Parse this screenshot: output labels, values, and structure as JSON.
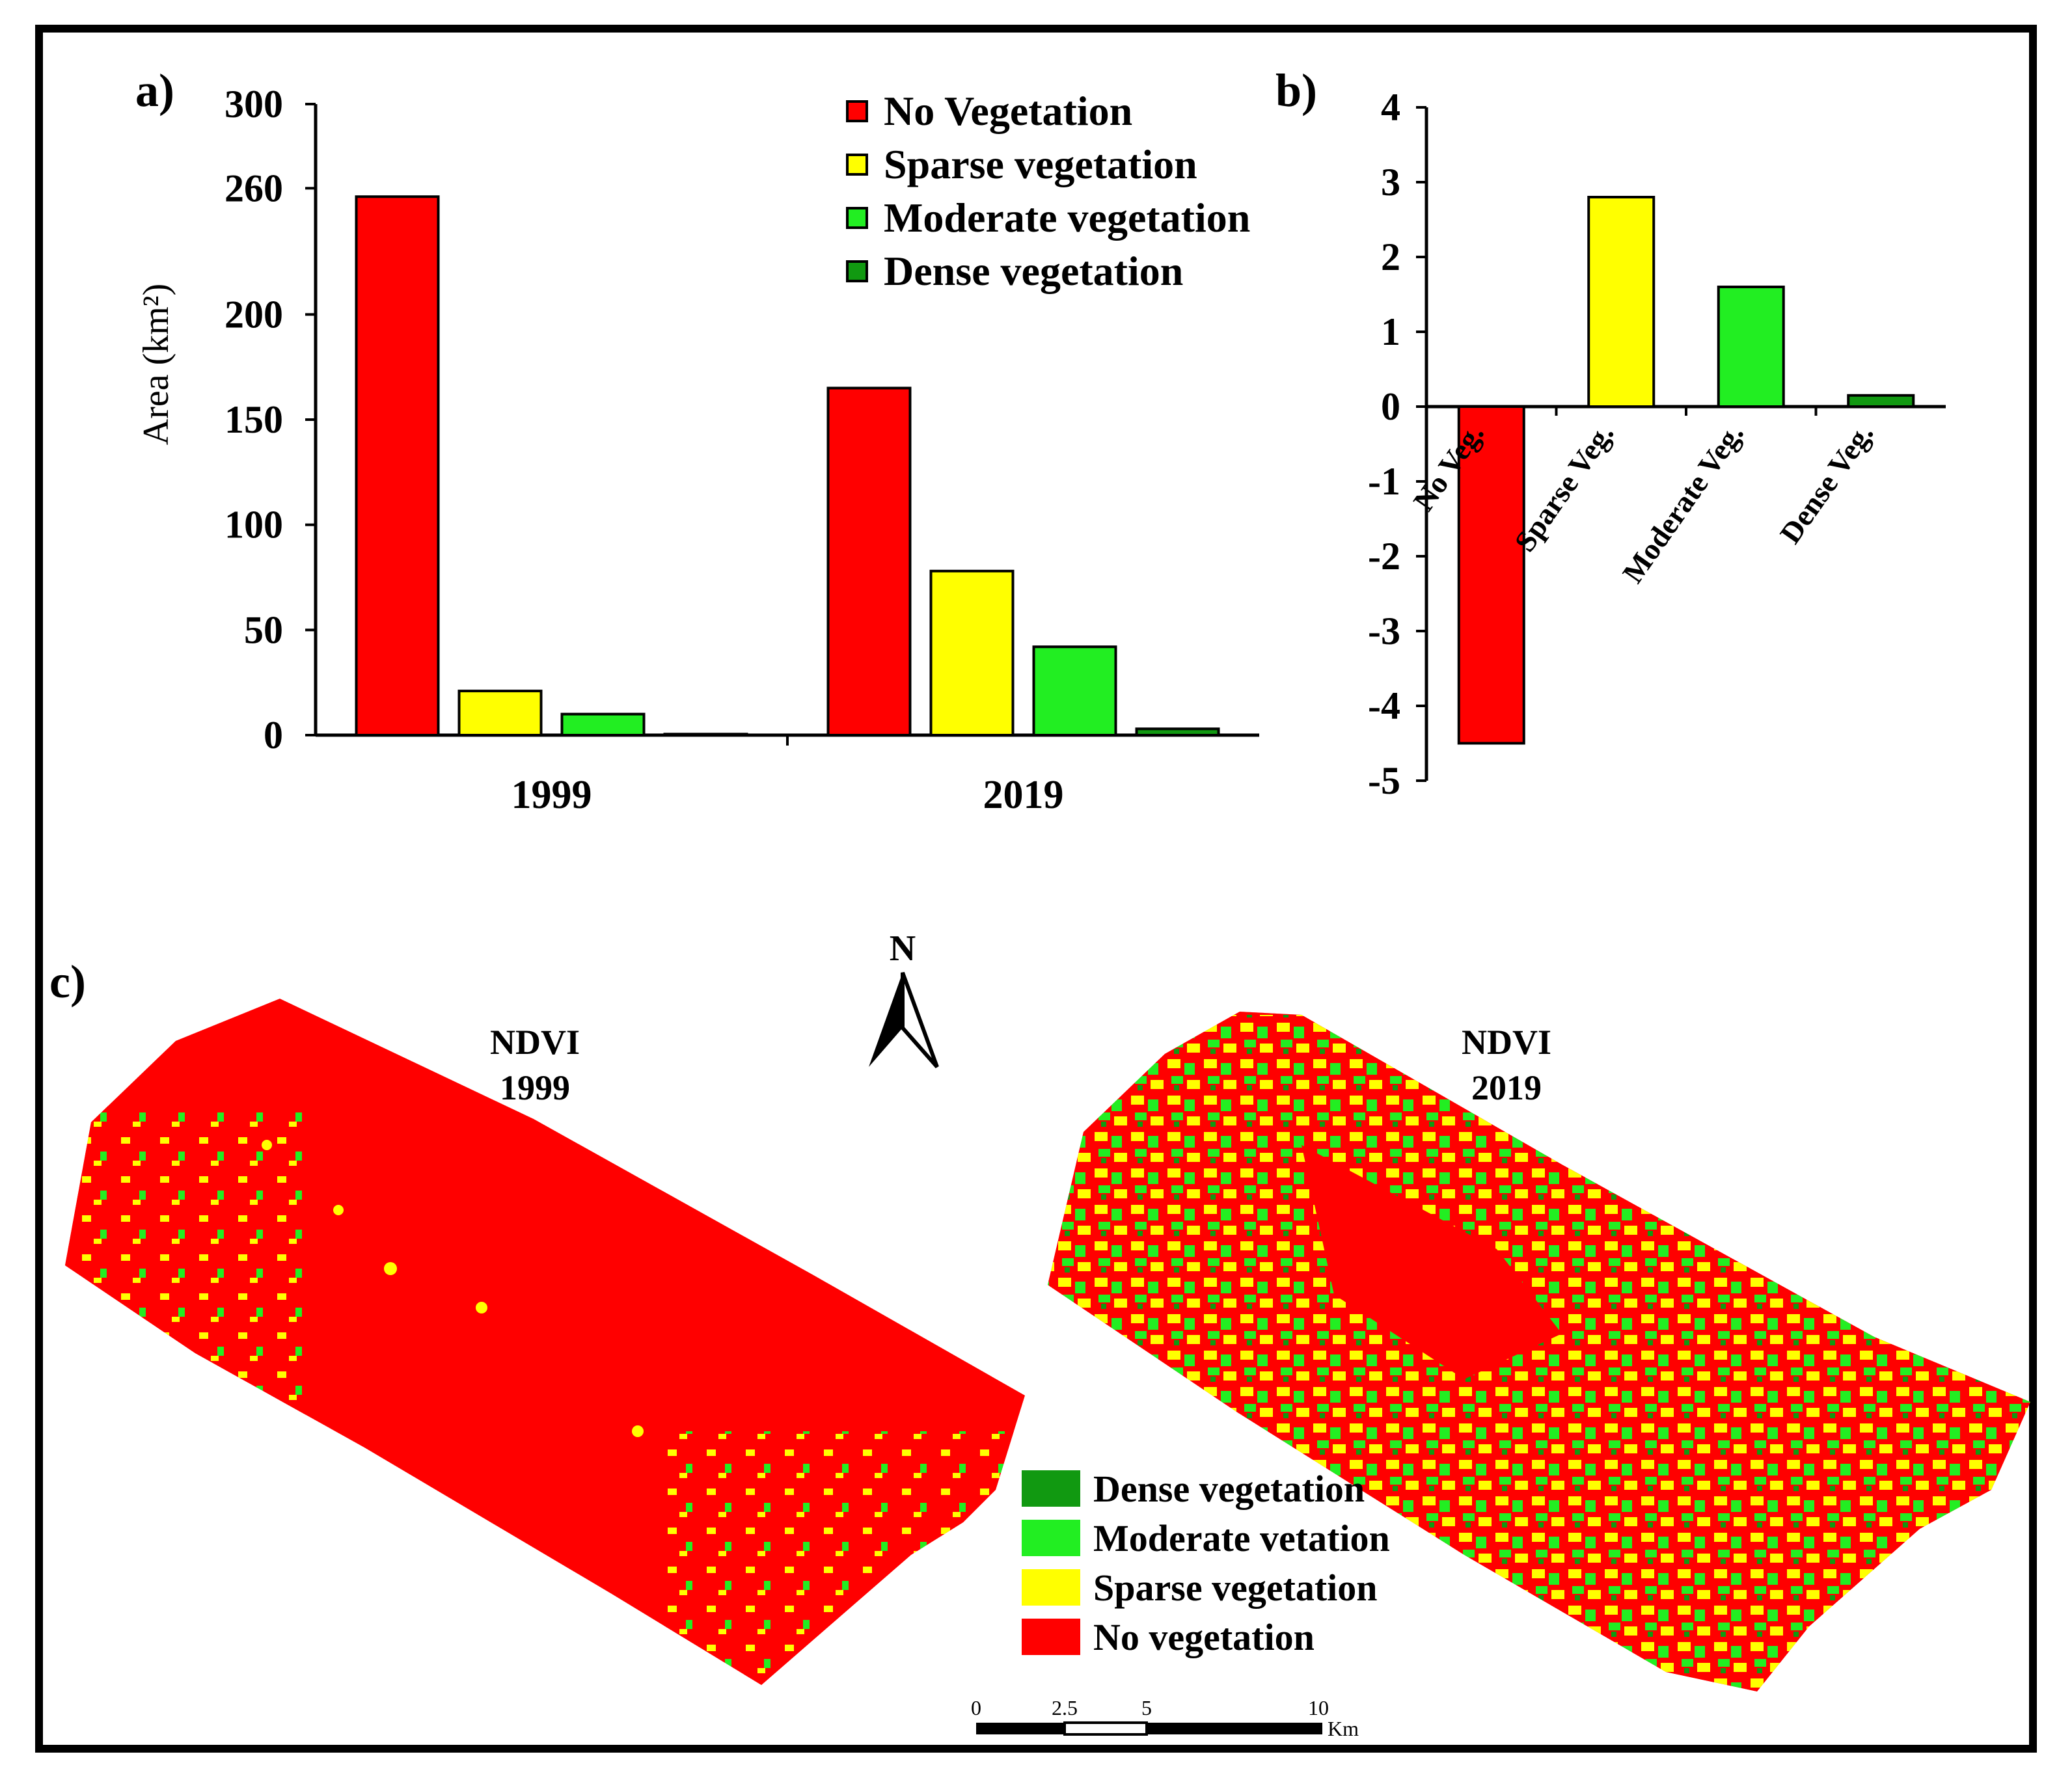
{
  "chart_data": [
    {
      "id": "a",
      "type": "bar",
      "panel_label": "a)",
      "ylabel": "Area (km²)",
      "xlabel": "",
      "ylim": [
        0,
        300
      ],
      "y_ticks": [
        "0",
        "50",
        "100",
        "150",
        "200",
        "260",
        "300"
      ],
      "categories": [
        "1999",
        "2019"
      ],
      "series": [
        {
          "name": "No Vegetation",
          "color": "#ff0000",
          "values": [
            256,
            165
          ]
        },
        {
          "name": "Sparse vegetation",
          "color": "#ffff00",
          "values": [
            21,
            78
          ]
        },
        {
          "name": "Moderate vegetation",
          "color": "#22ee22",
          "values": [
            10,
            42
          ]
        },
        {
          "name": "Dense vegetation",
          "color": "#119911",
          "values": [
            0.5,
            3
          ]
        }
      ],
      "legend": [
        "No Vegetation",
        "Sparse vegetation",
        "Moderate vegetation",
        "Dense vegetation"
      ]
    },
    {
      "id": "b",
      "type": "bar",
      "panel_label": "b)",
      "ylim": [
        -5,
        4
      ],
      "y_ticks": [
        "-5",
        "-4",
        "-3",
        "-2",
        "-1",
        "0",
        "1",
        "2",
        "3",
        "4"
      ],
      "categories": [
        "No Veg.",
        "Sparse Veg.",
        "Moderate Veg.",
        "Dense Veg."
      ],
      "values": [
        -4.5,
        2.8,
        1.6,
        0.15
      ],
      "colors": [
        "#ff0000",
        "#ffff00",
        "#22ee22",
        "#119911"
      ]
    }
  ],
  "maps": {
    "panel_label": "c)",
    "north": "N",
    "map1": {
      "title_line1": "NDVI",
      "title_line2": "1999"
    },
    "map2": {
      "title_line1": "NDVI",
      "title_line2": "2019"
    },
    "legend": [
      {
        "label": "Dense vegetation",
        "color": "#119911"
      },
      {
        "label": "Moderate vetation",
        "color": "#22ee22"
      },
      {
        "label": "Sparse vegetation",
        "color": "#ffff00"
      },
      {
        "label": "No vegetation",
        "color": "#ff0000"
      }
    ],
    "scale_bar": {
      "ticks": [
        "0",
        "2.5",
        "5",
        "10"
      ],
      "unit": "Km"
    }
  }
}
